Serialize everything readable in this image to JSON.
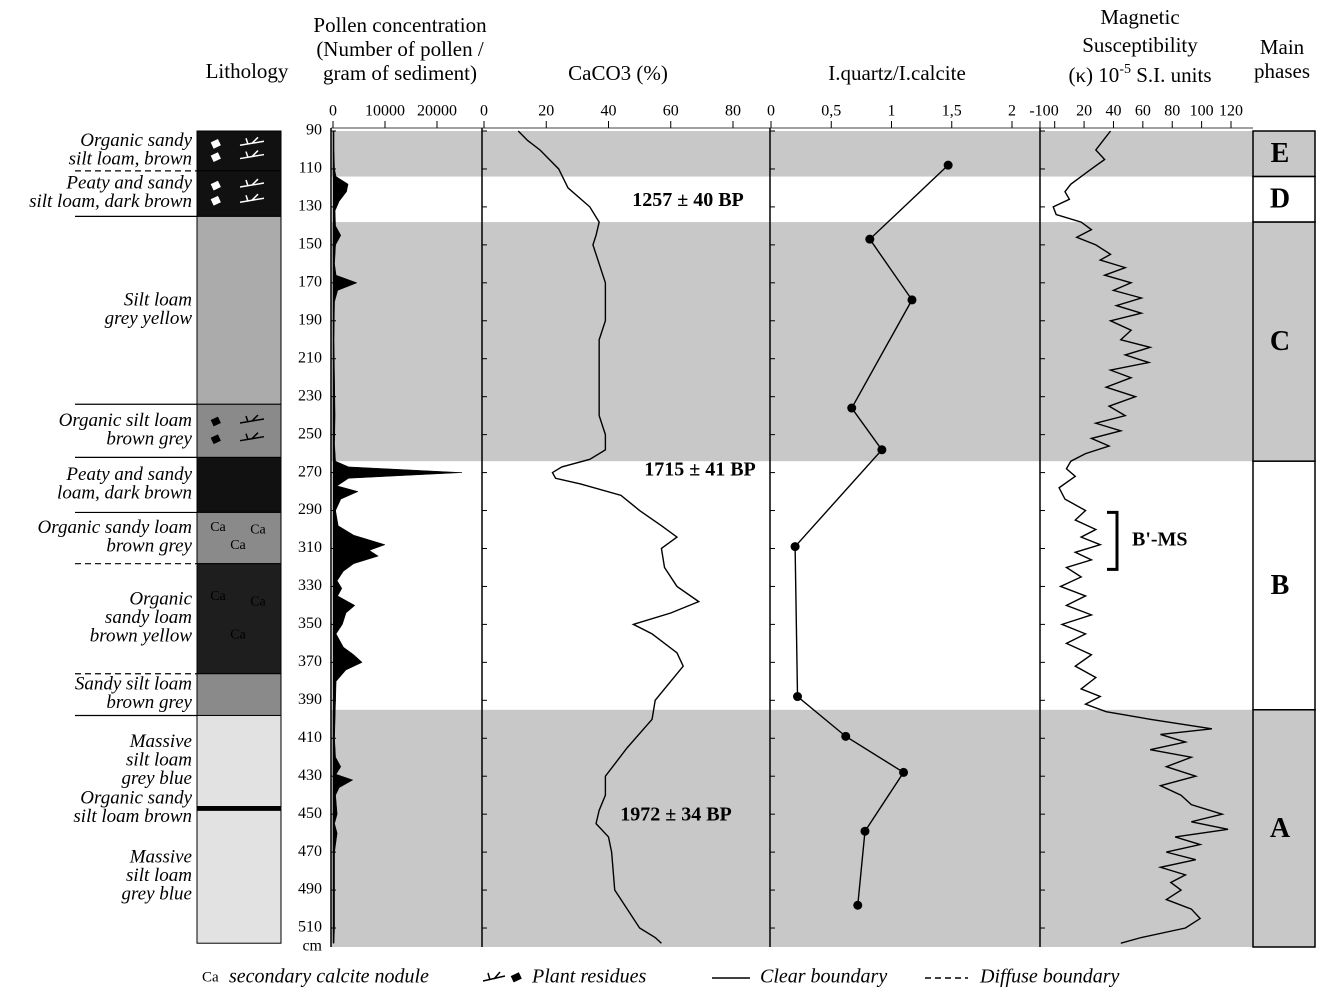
{
  "chart_data": {
    "type": "depth-profile",
    "depth_axis": {
      "label": "cm",
      "ylim": [
        90,
        520
      ],
      "yticks": [
        90,
        110,
        130,
        150,
        170,
        190,
        210,
        230,
        250,
        270,
        290,
        310,
        330,
        350,
        370,
        390,
        410,
        430,
        450,
        470,
        490,
        510
      ]
    },
    "lithology": {
      "title": "Lithology",
      "units": [
        {
          "lines": [
            "Organic sandy",
            "silt loam, brown"
          ],
          "top": 90,
          "bottom": 111,
          "fill": "#111111",
          "boundary": "dashed",
          "symbols": "plant"
        },
        {
          "lines": [
            "Peaty and sandy",
            "silt loam, dark brown"
          ],
          "top": 111,
          "bottom": 135,
          "fill": "#111111",
          "boundary": "solid",
          "symbols": "plant"
        },
        {
          "lines": [
            "Silt loam",
            "grey yellow"
          ],
          "top": 135,
          "bottom": 234,
          "fill": "#ababab",
          "boundary": "solid"
        },
        {
          "lines": [
            "Organic silt loam",
            "brown grey"
          ],
          "top": 234,
          "bottom": 262,
          "fill": "#8a8a8a",
          "boundary": "solid",
          "symbols": "plant"
        },
        {
          "lines": [
            "Peaty and sandy",
            "loam, dark brown"
          ],
          "top": 262,
          "bottom": 291,
          "fill": "#111111",
          "boundary": "solid"
        },
        {
          "lines": [
            "Organic sandy loam",
            "brown grey"
          ],
          "top": 291,
          "bottom": 318,
          "fill": "#8a8a8a",
          "boundary": "dashed",
          "symbols": "nodule"
        },
        {
          "lines": [
            "Organic",
            "sandy loam",
            "brown yellow"
          ],
          "top": 318,
          "bottom": 376,
          "fill": "#1e1e1e",
          "boundary": "dashed",
          "symbols": "nodule"
        },
        {
          "lines": [
            "Sandy silt loam",
            "brown grey"
          ],
          "top": 376,
          "bottom": 398,
          "fill": "#8a8a8a",
          "boundary": "solid"
        },
        {
          "lines": [
            "Massive",
            "silt loam",
            "grey blue"
          ],
          "top": 398,
          "bottom": 446,
          "fill": "#e2e2e2"
        },
        {
          "lines": [
            "Organic sandy",
            "silt loam brown"
          ],
          "top": 446,
          "bottom": 448,
          "fill": "#000000"
        },
        {
          "lines": [
            "Massive",
            "silt loam",
            "grey blue"
          ],
          "top": 448,
          "bottom": 518,
          "fill": "#e2e2e2"
        }
      ]
    },
    "panels": [
      {
        "type": "area",
        "title_lines": [
          "Pollen concentration",
          "(Number of pollen /",
          "gram of sediment)"
        ],
        "color": "#000000",
        "xlim": [
          0,
          25000
        ],
        "xticks": [
          0,
          10000,
          20000
        ],
        "depths": [
          90,
          100,
          110,
          114,
          118,
          122,
          127,
          132,
          140,
          145,
          150,
          160,
          166,
          170,
          174,
          180,
          200,
          220,
          240,
          255,
          264,
          267,
          270,
          273,
          277,
          280,
          284,
          290,
          298,
          303,
          308,
          311,
          314,
          318,
          322,
          327,
          331,
          335,
          340,
          344,
          350,
          355,
          362,
          366,
          370,
          374,
          380,
          390,
          400,
          410,
          420,
          425,
          429,
          432,
          436,
          440,
          450,
          455,
          460,
          470,
          490,
          510,
          518
        ],
        "values": [
          200,
          200,
          300,
          600,
          2900,
          2600,
          1200,
          400,
          500,
          1500,
          500,
          300,
          600,
          4600,
          900,
          300,
          200,
          300,
          400,
          300,
          500,
          3000,
          24800,
          3000,
          800,
          4800,
          1500,
          500,
          1000,
          4000,
          10000,
          7000,
          8700,
          4000,
          2000,
          800,
          1700,
          900,
          4200,
          2500,
          1800,
          600,
          2000,
          4000,
          5600,
          2500,
          600,
          500,
          400,
          300,
          500,
          1500,
          600,
          3800,
          1200,
          500,
          800,
          300,
          800,
          300,
          300,
          300,
          200
        ]
      },
      {
        "type": "line",
        "title_lines": [
          "CaCO3 (%)"
        ],
        "color": "#000000",
        "xlim": [
          0,
          80
        ],
        "xticks": [
          0,
          20,
          40,
          60,
          80
        ],
        "depths": [
          90,
          95,
          100,
          110,
          120,
          130,
          138,
          145,
          150,
          160,
          170,
          180,
          190,
          200,
          220,
          240,
          250,
          258,
          263,
          267,
          270,
          273,
          276,
          282,
          290,
          298,
          304,
          310,
          320,
          330,
          338,
          344,
          350,
          355,
          365,
          372,
          380,
          390,
          400,
          415,
          430,
          440,
          448,
          455,
          462,
          470,
          490,
          500,
          510,
          515,
          518
        ],
        "values": [
          11,
          14,
          18,
          24,
          27,
          34,
          37,
          36,
          35,
          37,
          39,
          39,
          39,
          37,
          37,
          37,
          39,
          39,
          34,
          25,
          22,
          23,
          31,
          44,
          50,
          57,
          62,
          57,
          58,
          62,
          69,
          60,
          48,
          54,
          62,
          64,
          60,
          55,
          54,
          46,
          39,
          39,
          37,
          36,
          40,
          41,
          42,
          46,
          50,
          55,
          57
        ]
      },
      {
        "type": "line-markers",
        "title_lines": [
          "I.quartz/I.calcite"
        ],
        "color": "#000000",
        "xlim": [
          0,
          2
        ],
        "xticks": [
          0,
          {
            "value": 0.5,
            "label": "0,5"
          },
          1,
          {
            "value": 1.5,
            "label": "1,5"
          },
          2
        ],
        "depths": [
          108,
          147,
          179,
          236,
          258,
          309,
          388,
          409,
          428,
          459,
          498
        ],
        "values": [
          1.47,
          0.82,
          1.17,
          0.67,
          0.92,
          0.2,
          0.22,
          0.62,
          1.1,
          0.78,
          0.72
        ]
      },
      {
        "type": "line",
        "title_lines": [
          "Magnetic",
          "Susceptibility"
        ],
        "unit_line": [
          "(κ) 10",
          "-5",
          " S.I. units"
        ],
        "color": "#000000",
        "xlim": [
          -10,
          120
        ],
        "xticks": [
          -10,
          0,
          20,
          40,
          60,
          80,
          100,
          120
        ],
        "depths": [
          90,
          95,
          100,
          105,
          110,
          114,
          118,
          122,
          126,
          130,
          134,
          138,
          142,
          146,
          150,
          155,
          158,
          162,
          166,
          170,
          174,
          178,
          182,
          186,
          190,
          195,
          200,
          204,
          208,
          212,
          216,
          220,
          225,
          230,
          235,
          240,
          244,
          248,
          252,
          256,
          260,
          264,
          268,
          272,
          278,
          284,
          290,
          295,
          300,
          304,
          308,
          312,
          316,
          320,
          325,
          330,
          335,
          340,
          345,
          350,
          355,
          360,
          366,
          372,
          378,
          384,
          388,
          392,
          396,
          400,
          405,
          408,
          412,
          416,
          420,
          425,
          430,
          435,
          440,
          445,
          450,
          454,
          458,
          462,
          466,
          470,
          474,
          478,
          482,
          486,
          490,
          495,
          500,
          505,
          510,
          515,
          518
        ],
        "values": [
          38,
          33,
          28,
          34,
          25,
          18,
          11,
          7,
          10,
          -1,
          1,
          18,
          25,
          15,
          28,
          38,
          31,
          48,
          34,
          52,
          40,
          59,
          42,
          59,
          38,
          52,
          45,
          65,
          48,
          64,
          38,
          52,
          35,
          55,
          37,
          48,
          28,
          45,
          25,
          37,
          21,
          11,
          8,
          14,
          3,
          7,
          21,
          14,
          28,
          18,
          31,
          14,
          25,
          8,
          18,
          4,
          21,
          8,
          25,
          5,
          21,
          8,
          25,
          14,
          28,
          18,
          31,
          21,
          35,
          65,
          107,
          72,
          89,
          65,
          93,
          76,
          96,
          72,
          86,
          93,
          114,
          93,
          118,
          82,
          99,
          76,
          96,
          72,
          89,
          79,
          86,
          76,
          93,
          99,
          89,
          59,
          45
        ]
      }
    ],
    "phases": {
      "title_lines": [
        "Main",
        "phases"
      ],
      "shade": "#c8c8c8",
      "items": [
        {
          "label": "E",
          "top": 90,
          "bottom": 114,
          "shaded": true
        },
        {
          "label": "D",
          "top": 114,
          "bottom": 138,
          "shaded": false
        },
        {
          "label": "C",
          "top": 138,
          "bottom": 264,
          "shaded": true
        },
        {
          "label": "B",
          "top": 264,
          "bottom": 395,
          "shaded": false
        },
        {
          "label": "A",
          "top": 395,
          "bottom": 520,
          "shaded": true
        }
      ]
    },
    "annotations": [
      {
        "text": "1257 ± 40 BP",
        "depth": 127
      },
      {
        "text": "1715 ± 41 BP",
        "depth": 269
      },
      {
        "text": "1972 ± 34 BP",
        "depth": 451
      }
    ],
    "bracket": {
      "label": "B'-MS",
      "top": 291,
      "bottom": 321
    },
    "legend": [
      {
        "symbol": "Ca",
        "text": "secondary calcite nodule"
      },
      {
        "text": "Plant residues"
      },
      {
        "text": "Clear boundary"
      },
      {
        "text": "Diffuse boundary"
      }
    ]
  }
}
